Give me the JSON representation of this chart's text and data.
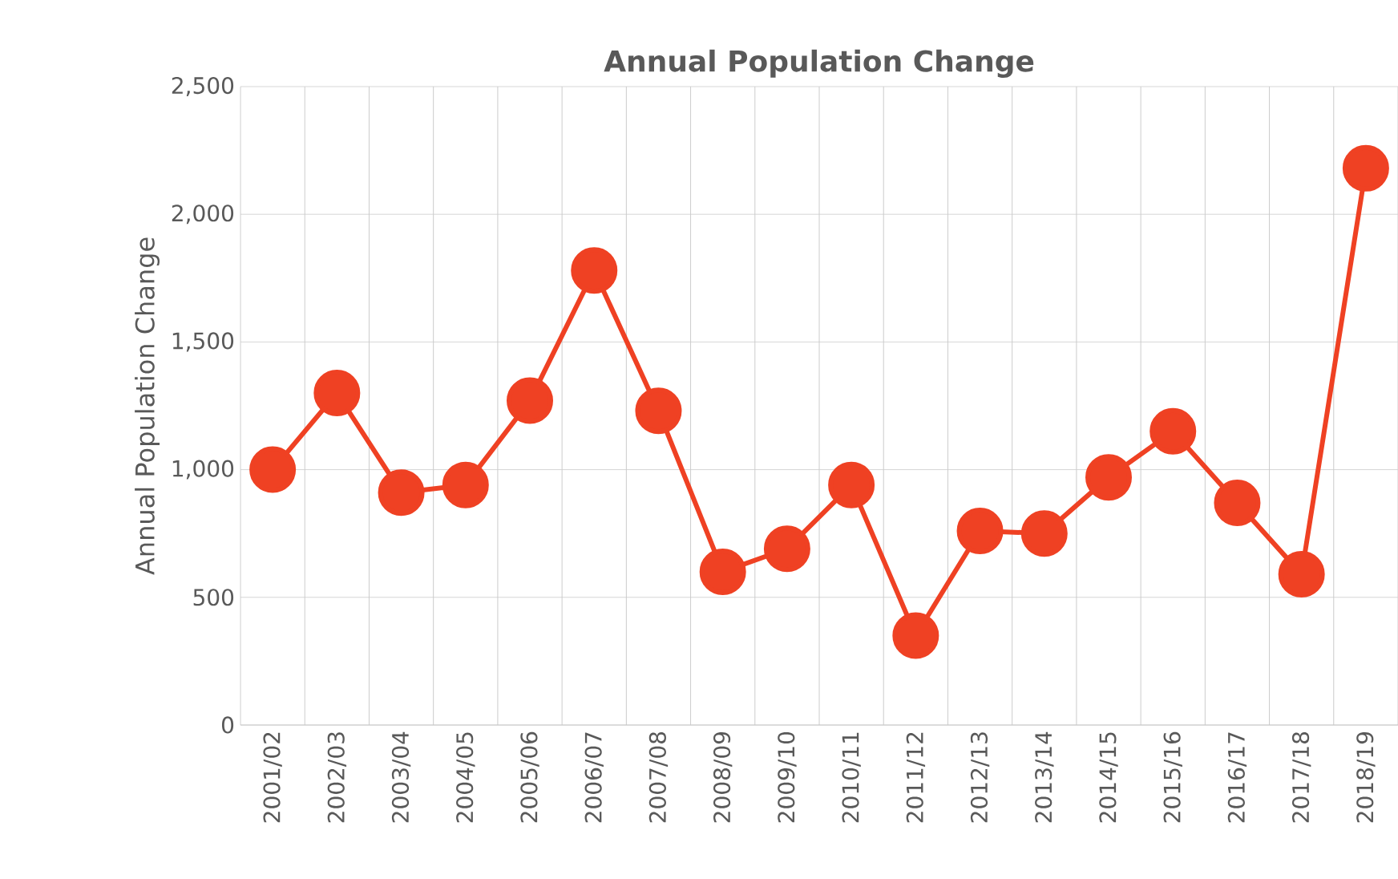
{
  "chart_data": {
    "type": "line",
    "title": "Annual Population Change",
    "ylabel": "Annual Population Change",
    "categories": [
      "2001/02",
      "2002/03",
      "2003/04",
      "2004/05",
      "2005/06",
      "2006/07",
      "2007/08",
      "2008/09",
      "2009/10",
      "2010/11",
      "2011/12",
      "2012/13",
      "2013/14",
      "2014/15",
      "2015/16",
      "2016/17",
      "2017/18",
      "2018/19"
    ],
    "series": [
      {
        "color": "#ef4123",
        "values": [
          1000,
          1300,
          910,
          940,
          1270,
          1780,
          1230,
          600,
          690,
          940,
          350,
          760,
          750,
          970,
          1150,
          870,
          590,
          2180
        ]
      }
    ],
    "ylim": [
      0,
      2500
    ],
    "yticks": [
      0,
      {
        "value": 500,
        "label": "500"
      },
      {
        "value": 1000,
        "label": "1,000"
      },
      {
        "value": 1500,
        "label": "1,500"
      },
      {
        "value": 2000,
        "label": "2,000"
      },
      {
        "value": 2500,
        "label": "2,500"
      }
    ],
    "grid": true,
    "marker": "circle",
    "line_style": "solid"
  }
}
